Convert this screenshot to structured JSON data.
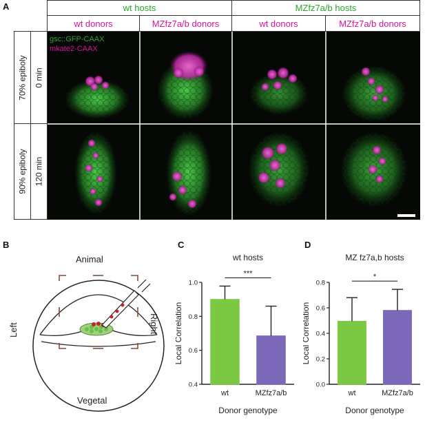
{
  "panel_letters": {
    "a": "A",
    "b": "B",
    "c": "C",
    "d": "D"
  },
  "panel_a": {
    "host_headers": [
      "wt hosts",
      "MZfz7a/b hosts"
    ],
    "donor_headers": [
      "wt donors",
      "MZfz7a/b donors",
      "wt donors",
      "MZfz7a/b donors"
    ],
    "row_stage_labels": [
      "70% epiboly",
      "90% epiboly"
    ],
    "row_time_labels": [
      "0 min",
      "120 min"
    ],
    "marker_labels": [
      "gsc::GFP-CAAX",
      "mkate2-CAAX"
    ],
    "colors": {
      "green": "#2fa32f",
      "magenta": "#d0169a"
    }
  },
  "panel_b": {
    "labels": {
      "top": "Animal",
      "bottom": "Vegetal",
      "left": "Left",
      "right": "Right"
    }
  },
  "chart_data": [
    {
      "type": "bar",
      "title": "wt hosts",
      "xlabel": "Donor genotype",
      "ylabel": "Local Correlation",
      "categories": [
        "wt",
        "MZfz7a/b"
      ],
      "values": [
        0.9,
        0.685
      ],
      "errors_upper": [
        0.978,
        0.86
      ],
      "ylim": [
        0.4,
        1.0
      ],
      "yticks": [
        "0.4",
        "0.6",
        "0.8",
        "1.0"
      ],
      "significance": "***",
      "colors": [
        "#7bc843",
        "#7b68b8"
      ]
    },
    {
      "type": "bar",
      "title": "MZ fz7a,b hosts",
      "xlabel": "Donor genotype",
      "ylabel": "Local Correlation",
      "categories": [
        "wt",
        "MZfz7a/b"
      ],
      "values": [
        0.495,
        0.58
      ],
      "errors_upper": [
        0.68,
        0.745
      ],
      "ylim": [
        0.0,
        0.8
      ],
      "yticks": [
        "0.0",
        "0.2",
        "0.4",
        "0.6",
        "0.8"
      ],
      "significance": "*",
      "colors": [
        "#7bc843",
        "#7b68b8"
      ]
    }
  ]
}
